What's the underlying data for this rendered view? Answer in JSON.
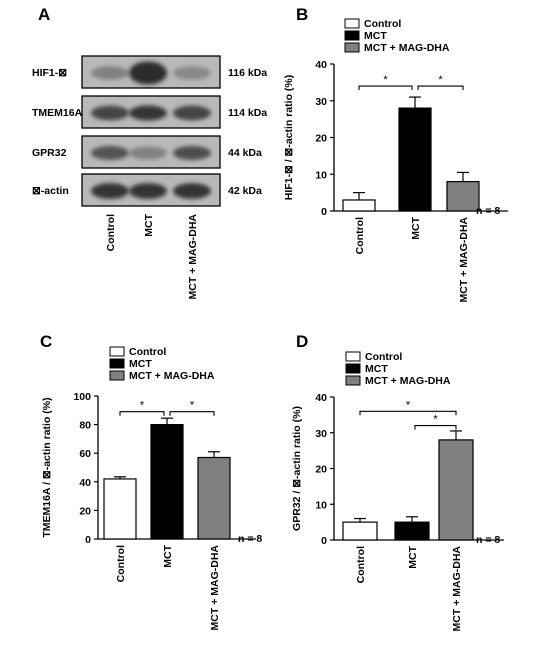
{
  "panels": {
    "A": {
      "letter": "A",
      "blots": [
        {
          "name": "HIF1-⊠",
          "size": "116 kDa"
        },
        {
          "name": "TMEM16A",
          "size": "114 kDa"
        },
        {
          "name": "GPR32",
          "size": "44 kDa"
        },
        {
          "name": "⊠-actin",
          "size": "42 kDa"
        }
      ],
      "lanes": [
        "Control",
        "MCT",
        "MCT + MAG-DHA"
      ]
    }
  },
  "chart_data": [
    {
      "panel": "B",
      "type": "bar",
      "categories": [
        "Control",
        "MCT",
        "MCT + MAG-DHA"
      ],
      "values": [
        3,
        28,
        8
      ],
      "errors": [
        2,
        3,
        2.5
      ],
      "ylabel": "HIF1-⊠ / ⊠-actin ratio (%)",
      "ylim": [
        0,
        40
      ],
      "yticks": [
        0,
        10,
        20,
        30,
        40
      ],
      "legend": [
        "Control",
        "MCT",
        "MCT + MAG-DHA"
      ],
      "colors": [
        "#ffffff",
        "#000000",
        "#808080"
      ],
      "n_label": "n = 8",
      "significance": [
        {
          "from": 0,
          "to": 1,
          "label": "*",
          "y": 34
        },
        {
          "from": 1,
          "to": 2,
          "label": "*",
          "y": 34
        }
      ]
    },
    {
      "panel": "C",
      "type": "bar",
      "categories": [
        "Control",
        "MCT",
        "MCT + MAG-DHA"
      ],
      "values": [
        42,
        80,
        57
      ],
      "errors": [
        1.5,
        4.5,
        4
      ],
      "ylabel": "TMEM16A / ⊠-actin ratio (%)",
      "ylim": [
        0,
        100
      ],
      "yticks": [
        0,
        20,
        40,
        60,
        80,
        100
      ],
      "legend": [
        "Control",
        "MCT",
        "MCT + MAG-DHA"
      ],
      "colors": [
        "#ffffff",
        "#000000",
        "#808080"
      ],
      "n_label": "n = 8",
      "significance": [
        {
          "from": 0,
          "to": 1,
          "label": "*",
          "y": 89
        },
        {
          "from": 1,
          "to": 2,
          "label": "*",
          "y": 89
        }
      ]
    },
    {
      "panel": "D",
      "type": "bar",
      "categories": [
        "Control",
        "MCT",
        "MCT + MAG-DHA"
      ],
      "values": [
        5,
        5,
        28
      ],
      "errors": [
        1,
        1.5,
        2.5
      ],
      "ylabel": "GPR32 / ⊠-actin ratio (%)",
      "ylim": [
        0,
        40
      ],
      "yticks": [
        0,
        10,
        20,
        30,
        40
      ],
      "legend": [
        "Control",
        "MCT",
        "MCT + MAG-DHA"
      ],
      "colors": [
        "#ffffff",
        "#000000",
        "#808080"
      ],
      "n_label": "n = 8",
      "significance": [
        {
          "from": 0,
          "to": 2,
          "label": "*",
          "y": 36
        },
        {
          "from": 1,
          "to": 2,
          "label": "*",
          "y": 32
        }
      ]
    }
  ]
}
